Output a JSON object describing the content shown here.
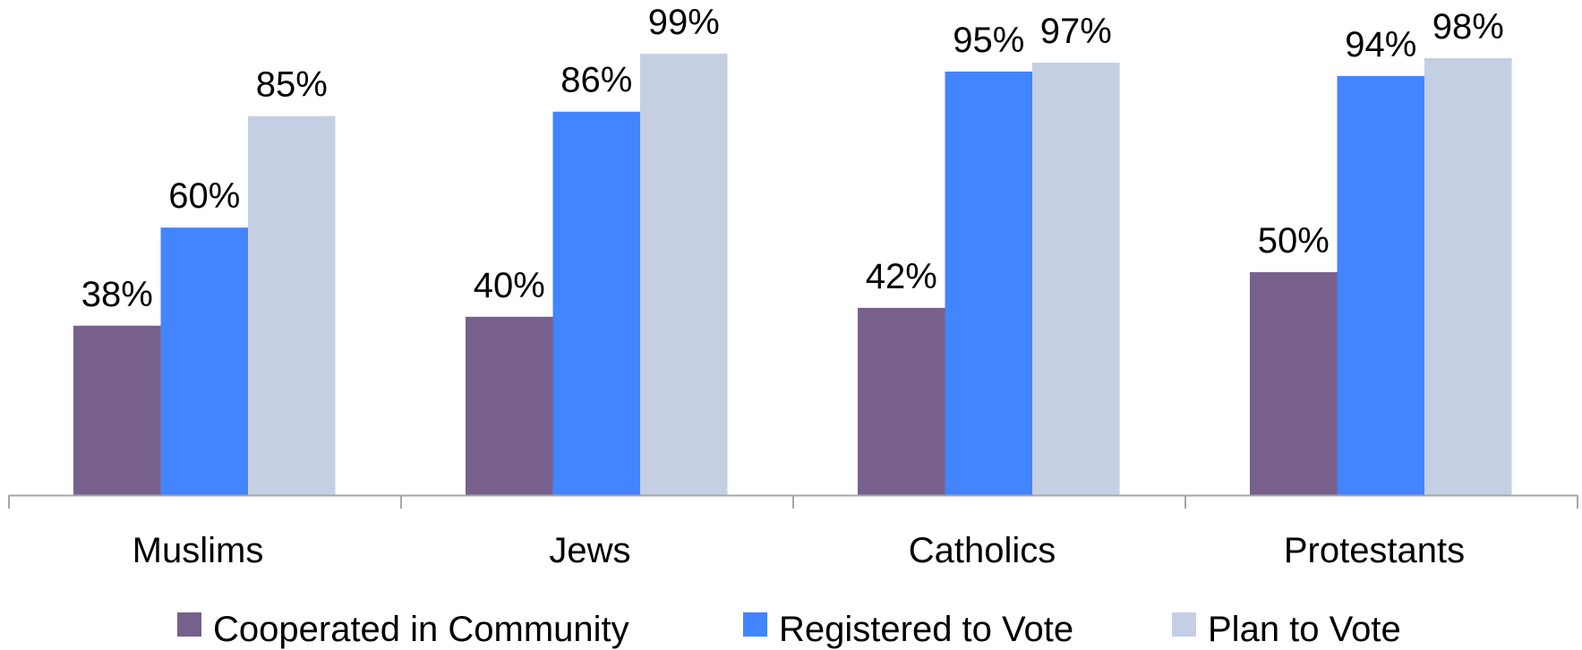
{
  "chart_data": {
    "type": "bar",
    "categories": [
      "Muslims",
      "Jews",
      "Catholics",
      "Protestants"
    ],
    "series": [
      {
        "name": "Cooperated in Community",
        "values": [
          38,
          40,
          42,
          50
        ],
        "labels": [
          "38%",
          "40%",
          "42%",
          "50%"
        ],
        "color": "#77618C"
      },
      {
        "name": "Registered to Vote",
        "values": [
          60,
          86,
          95,
          94
        ],
        "labels": [
          "60%",
          "86%",
          "95%",
          "94%"
        ],
        "color": "#4384FF"
      },
      {
        "name": "Plan to Vote",
        "values": [
          85,
          99,
          97,
          98
        ],
        "labels": [
          "85%",
          "99%",
          "97%",
          "98%"
        ],
        "color": "#C4CFE4"
      }
    ],
    "ylim": [
      0,
      100
    ],
    "grid": false,
    "legend_position": "bottom",
    "axis_color": "#A6A6A6"
  }
}
